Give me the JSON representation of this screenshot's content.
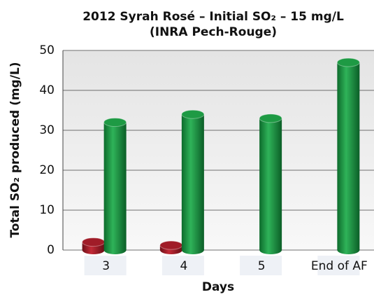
{
  "chart_data": {
    "type": "bar",
    "title": [
      "2012 Syrah Rosé – Initial SO₂ – 15 mg/L",
      "(INRA Pech-Rouge)"
    ],
    "x_label": "Days",
    "y_label": "Total SO₂ produced (mg/L)",
    "categories": [
      "3",
      "4",
      "5",
      "End of AF"
    ],
    "series": [
      {
        "color": "#a01c28",
        "values": [
          2,
          1.2,
          null,
          null
        ]
      },
      {
        "color": "#1e9a44",
        "values": [
          32,
          34,
          33,
          47
        ]
      }
    ],
    "ylim": [
      0,
      50
    ],
    "yticks": [
      0,
      10,
      20,
      30,
      40,
      50
    ],
    "grid": true
  }
}
